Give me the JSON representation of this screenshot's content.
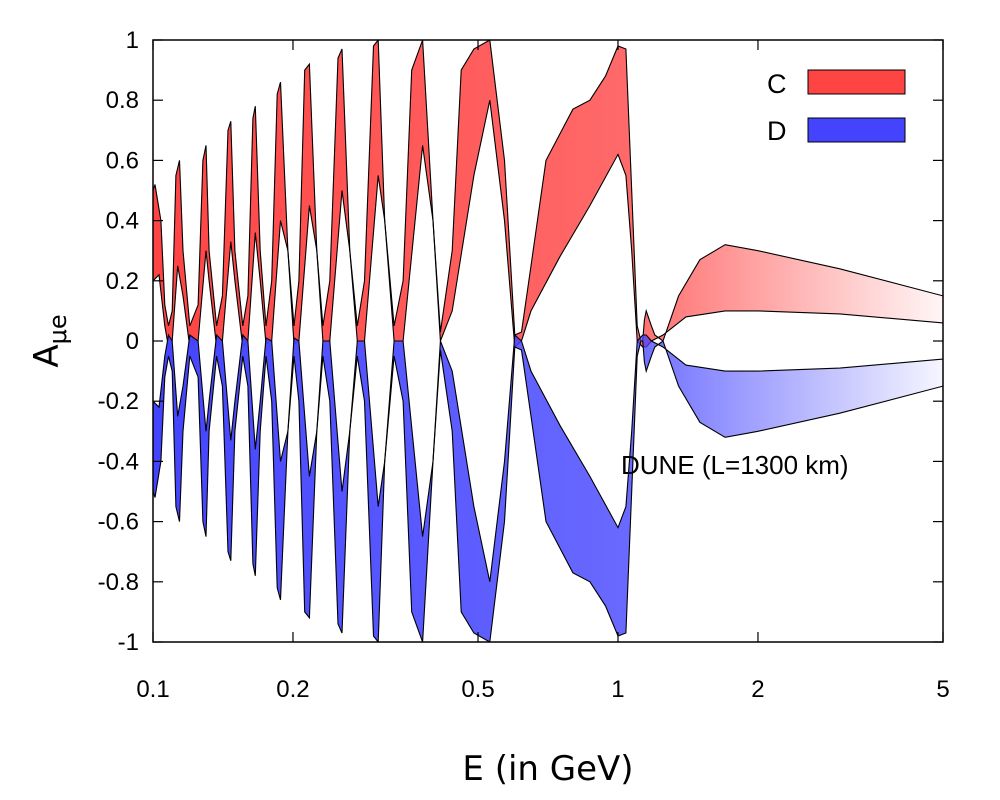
{
  "chart_data": {
    "type": "area",
    "title": "",
    "xlabel": "E (in GeV)",
    "ylabel_main": "A",
    "ylabel_sub": "μe",
    "x_scale": "log",
    "xlim": [
      0.1,
      5
    ],
    "ylim": [
      -1,
      1
    ],
    "x_ticks": [
      0.1,
      0.2,
      0.5,
      1,
      2,
      5
    ],
    "x_tick_labels": [
      "0.1",
      "0.2",
      "0.5",
      "1",
      "2",
      "5"
    ],
    "y_ticks": [
      -1,
      -0.8,
      -0.6,
      -0.4,
      -0.2,
      0,
      0.2,
      0.4,
      0.6,
      0.8,
      1
    ],
    "y_tick_labels": [
      "-1",
      "-0.8",
      "-0.6",
      "-0.4",
      "-0.2",
      "0",
      "0.2",
      "0.4",
      "0.6",
      "0.8",
      "1"
    ],
    "grid": false,
    "legend_position": "top-right",
    "annotation": "DUNE (L=1300 km)",
    "series": [
      {
        "name": "C",
        "color": "#ff4444",
        "upper": [
          [
            0.1,
            0.5
          ],
          [
            0.101,
            0.52
          ],
          [
            0.104,
            0.4
          ],
          [
            0.106,
            0.12
          ],
          [
            0.108,
            0.05
          ],
          [
            0.11,
            0.1
          ],
          [
            0.112,
            0.55
          ],
          [
            0.114,
            0.6
          ],
          [
            0.116,
            0.3
          ],
          [
            0.12,
            0.05
          ],
          [
            0.125,
            0.12
          ],
          [
            0.128,
            0.6
          ],
          [
            0.13,
            0.65
          ],
          [
            0.132,
            0.3
          ],
          [
            0.137,
            0.05
          ],
          [
            0.141,
            0.15
          ],
          [
            0.145,
            0.7
          ],
          [
            0.147,
            0.73
          ],
          [
            0.15,
            0.3
          ],
          [
            0.156,
            0.05
          ],
          [
            0.16,
            0.15
          ],
          [
            0.164,
            0.74
          ],
          [
            0.166,
            0.78
          ],
          [
            0.17,
            0.3
          ],
          [
            0.175,
            0.05
          ],
          [
            0.18,
            0.2
          ],
          [
            0.185,
            0.82
          ],
          [
            0.188,
            0.86
          ],
          [
            0.195,
            0.3
          ],
          [
            0.201,
            0.05
          ],
          [
            0.206,
            0.2
          ],
          [
            0.212,
            0.9
          ],
          [
            0.217,
            0.92
          ],
          [
            0.225,
            0.3
          ],
          [
            0.232,
            0.05
          ],
          [
            0.24,
            0.2
          ],
          [
            0.25,
            0.94
          ],
          [
            0.255,
            0.97
          ],
          [
            0.265,
            0.3
          ],
          [
            0.275,
            0.05
          ],
          [
            0.285,
            0.2
          ],
          [
            0.298,
            0.98
          ],
          [
            0.305,
            1.0
          ],
          [
            0.315,
            0.4
          ],
          [
            0.33,
            0.05
          ],
          [
            0.345,
            0.2
          ],
          [
            0.36,
            0.9
          ],
          [
            0.38,
            1.0
          ],
          [
            0.4,
            0.4
          ],
          [
            0.415,
            0.03
          ],
          [
            0.44,
            0.3
          ],
          [
            0.46,
            0.9
          ],
          [
            0.49,
            0.97
          ],
          [
            0.53,
            1.0
          ],
          [
            0.57,
            0.6
          ],
          [
            0.6,
            0.02
          ],
          [
            0.62,
            0.03
          ],
          [
            0.65,
            0.25
          ],
          [
            0.7,
            0.6
          ],
          [
            0.8,
            0.77
          ],
          [
            0.87,
            0.8
          ],
          [
            0.94,
            0.88
          ],
          [
            1.0,
            0.98
          ],
          [
            1.04,
            0.97
          ],
          [
            1.07,
            0.5
          ],
          [
            1.1,
            0.05
          ],
          [
            1.12,
            0.0
          ],
          [
            1.13,
            0.0
          ],
          [
            1.14,
            0.07
          ],
          [
            1.15,
            0.1
          ],
          [
            1.18,
            0.05
          ],
          [
            1.2,
            0.02
          ],
          [
            1.25,
            0.0
          ],
          [
            1.35,
            0.15
          ],
          [
            1.5,
            0.27
          ],
          [
            1.7,
            0.32
          ],
          [
            2.0,
            0.3
          ],
          [
            3.0,
            0.24
          ],
          [
            5.0,
            0.15
          ]
        ],
        "lower": [
          [
            0.1,
            0.2
          ],
          [
            0.103,
            0.22
          ],
          [
            0.106,
            0.05
          ],
          [
            0.108,
            -0.02
          ],
          [
            0.11,
            0.0
          ],
          [
            0.113,
            0.25
          ],
          [
            0.116,
            0.15
          ],
          [
            0.12,
            -0.02
          ],
          [
            0.125,
            0.0
          ],
          [
            0.13,
            0.3
          ],
          [
            0.132,
            0.2
          ],
          [
            0.137,
            -0.02
          ],
          [
            0.141,
            0.0
          ],
          [
            0.147,
            0.33
          ],
          [
            0.15,
            0.2
          ],
          [
            0.156,
            -0.02
          ],
          [
            0.16,
            0.0
          ],
          [
            0.166,
            0.36
          ],
          [
            0.17,
            0.2
          ],
          [
            0.175,
            -0.01
          ],
          [
            0.18,
            0.0
          ],
          [
            0.188,
            0.4
          ],
          [
            0.195,
            0.3
          ],
          [
            0.201,
            -0.01
          ],
          [
            0.206,
            0.0
          ],
          [
            0.217,
            0.45
          ],
          [
            0.225,
            0.3
          ],
          [
            0.232,
            0.0
          ],
          [
            0.24,
            0.0
          ],
          [
            0.255,
            0.5
          ],
          [
            0.265,
            0.3
          ],
          [
            0.275,
            0.0
          ],
          [
            0.285,
            0.0
          ],
          [
            0.305,
            0.55
          ],
          [
            0.315,
            0.4
          ],
          [
            0.33,
            0.0
          ],
          [
            0.345,
            0.0
          ],
          [
            0.38,
            0.65
          ],
          [
            0.4,
            0.4
          ],
          [
            0.415,
            0.0
          ],
          [
            0.44,
            0.1
          ],
          [
            0.49,
            0.55
          ],
          [
            0.53,
            0.8
          ],
          [
            0.57,
            0.4
          ],
          [
            0.6,
            -0.02
          ],
          [
            0.62,
            0.0
          ],
          [
            0.65,
            0.1
          ],
          [
            0.75,
            0.28
          ],
          [
            0.87,
            0.45
          ],
          [
            1.0,
            0.62
          ],
          [
            1.04,
            0.55
          ],
          [
            1.07,
            0.3
          ],
          [
            1.1,
            0.0
          ],
          [
            1.13,
            -0.02
          ],
          [
            1.15,
            -0.02
          ],
          [
            1.18,
            0.0
          ],
          [
            1.25,
            0.02
          ],
          [
            1.4,
            0.08
          ],
          [
            1.7,
            0.1
          ],
          [
            2.0,
            0.1
          ],
          [
            3.0,
            0.09
          ],
          [
            5.0,
            0.06
          ]
        ]
      },
      {
        "name": "D",
        "color": "#4444ff",
        "upper": [
          [
            0.1,
            -0.2
          ],
          [
            0.103,
            -0.22
          ],
          [
            0.106,
            -0.05
          ],
          [
            0.108,
            0.02
          ],
          [
            0.11,
            0.0
          ],
          [
            0.113,
            -0.25
          ],
          [
            0.116,
            -0.15
          ],
          [
            0.12,
            0.02
          ],
          [
            0.125,
            0.0
          ],
          [
            0.13,
            -0.3
          ],
          [
            0.132,
            -0.2
          ],
          [
            0.137,
            0.02
          ],
          [
            0.141,
            0.0
          ],
          [
            0.147,
            -0.33
          ],
          [
            0.15,
            -0.2
          ],
          [
            0.156,
            0.02
          ],
          [
            0.16,
            0.0
          ],
          [
            0.166,
            -0.36
          ],
          [
            0.17,
            -0.2
          ],
          [
            0.175,
            0.01
          ],
          [
            0.18,
            0.0
          ],
          [
            0.188,
            -0.4
          ],
          [
            0.195,
            -0.3
          ],
          [
            0.201,
            0.01
          ],
          [
            0.206,
            0.0
          ],
          [
            0.217,
            -0.45
          ],
          [
            0.225,
            -0.3
          ],
          [
            0.232,
            0.0
          ],
          [
            0.24,
            0.0
          ],
          [
            0.255,
            -0.5
          ],
          [
            0.265,
            -0.3
          ],
          [
            0.275,
            0.0
          ],
          [
            0.285,
            0.0
          ],
          [
            0.305,
            -0.55
          ],
          [
            0.315,
            -0.4
          ],
          [
            0.33,
            0.0
          ],
          [
            0.345,
            0.0
          ],
          [
            0.38,
            -0.65
          ],
          [
            0.4,
            -0.4
          ],
          [
            0.415,
            0.0
          ],
          [
            0.44,
            -0.1
          ],
          [
            0.49,
            -0.55
          ],
          [
            0.53,
            -0.8
          ],
          [
            0.57,
            -0.4
          ],
          [
            0.6,
            0.02
          ],
          [
            0.62,
            0.0
          ],
          [
            0.65,
            -0.1
          ],
          [
            0.75,
            -0.28
          ],
          [
            0.87,
            -0.45
          ],
          [
            1.0,
            -0.62
          ],
          [
            1.04,
            -0.55
          ],
          [
            1.07,
            -0.3
          ],
          [
            1.1,
            0.0
          ],
          [
            1.13,
            0.02
          ],
          [
            1.15,
            0.02
          ],
          [
            1.18,
            0.0
          ],
          [
            1.25,
            -0.02
          ],
          [
            1.4,
            -0.08
          ],
          [
            1.7,
            -0.1
          ],
          [
            2.0,
            -0.1
          ],
          [
            3.0,
            -0.09
          ],
          [
            5.0,
            -0.06
          ]
        ],
        "lower": [
          [
            0.1,
            -0.5
          ],
          [
            0.101,
            -0.52
          ],
          [
            0.104,
            -0.4
          ],
          [
            0.106,
            -0.12
          ],
          [
            0.108,
            -0.05
          ],
          [
            0.11,
            -0.1
          ],
          [
            0.112,
            -0.55
          ],
          [
            0.114,
            -0.6
          ],
          [
            0.116,
            -0.3
          ],
          [
            0.12,
            -0.05
          ],
          [
            0.125,
            -0.12
          ],
          [
            0.128,
            -0.6
          ],
          [
            0.13,
            -0.65
          ],
          [
            0.132,
            -0.3
          ],
          [
            0.137,
            -0.05
          ],
          [
            0.141,
            -0.15
          ],
          [
            0.145,
            -0.7
          ],
          [
            0.147,
            -0.73
          ],
          [
            0.15,
            -0.3
          ],
          [
            0.156,
            -0.05
          ],
          [
            0.16,
            -0.15
          ],
          [
            0.164,
            -0.74
          ],
          [
            0.166,
            -0.78
          ],
          [
            0.17,
            -0.3
          ],
          [
            0.175,
            -0.05
          ],
          [
            0.18,
            -0.2
          ],
          [
            0.185,
            -0.82
          ],
          [
            0.188,
            -0.86
          ],
          [
            0.195,
            -0.3
          ],
          [
            0.201,
            -0.05
          ],
          [
            0.206,
            -0.2
          ],
          [
            0.212,
            -0.9
          ],
          [
            0.217,
            -0.92
          ],
          [
            0.225,
            -0.3
          ],
          [
            0.232,
            -0.05
          ],
          [
            0.24,
            -0.2
          ],
          [
            0.25,
            -0.94
          ],
          [
            0.255,
            -0.97
          ],
          [
            0.265,
            -0.3
          ],
          [
            0.275,
            -0.05
          ],
          [
            0.285,
            -0.2
          ],
          [
            0.298,
            -0.98
          ],
          [
            0.305,
            -1.0
          ],
          [
            0.315,
            -0.4
          ],
          [
            0.33,
            -0.05
          ],
          [
            0.345,
            -0.2
          ],
          [
            0.36,
            -0.9
          ],
          [
            0.38,
            -1.0
          ],
          [
            0.4,
            -0.4
          ],
          [
            0.415,
            -0.03
          ],
          [
            0.44,
            -0.3
          ],
          [
            0.46,
            -0.9
          ],
          [
            0.49,
            -0.97
          ],
          [
            0.53,
            -1.0
          ],
          [
            0.57,
            -0.6
          ],
          [
            0.6,
            -0.02
          ],
          [
            0.62,
            -0.03
          ],
          [
            0.65,
            -0.25
          ],
          [
            0.7,
            -0.6
          ],
          [
            0.8,
            -0.77
          ],
          [
            0.87,
            -0.8
          ],
          [
            0.94,
            -0.88
          ],
          [
            1.0,
            -0.98
          ],
          [
            1.04,
            -0.97
          ],
          [
            1.07,
            -0.5
          ],
          [
            1.1,
            -0.05
          ],
          [
            1.12,
            0.0
          ],
          [
            1.13,
            0.0
          ],
          [
            1.14,
            -0.07
          ],
          [
            1.15,
            -0.1
          ],
          [
            1.18,
            -0.05
          ],
          [
            1.2,
            -0.02
          ],
          [
            1.25,
            0.0
          ],
          [
            1.35,
            -0.15
          ],
          [
            1.5,
            -0.27
          ],
          [
            1.7,
            -0.32
          ],
          [
            2.0,
            -0.3
          ],
          [
            3.0,
            -0.24
          ],
          [
            5.0,
            -0.15
          ]
        ]
      }
    ]
  }
}
